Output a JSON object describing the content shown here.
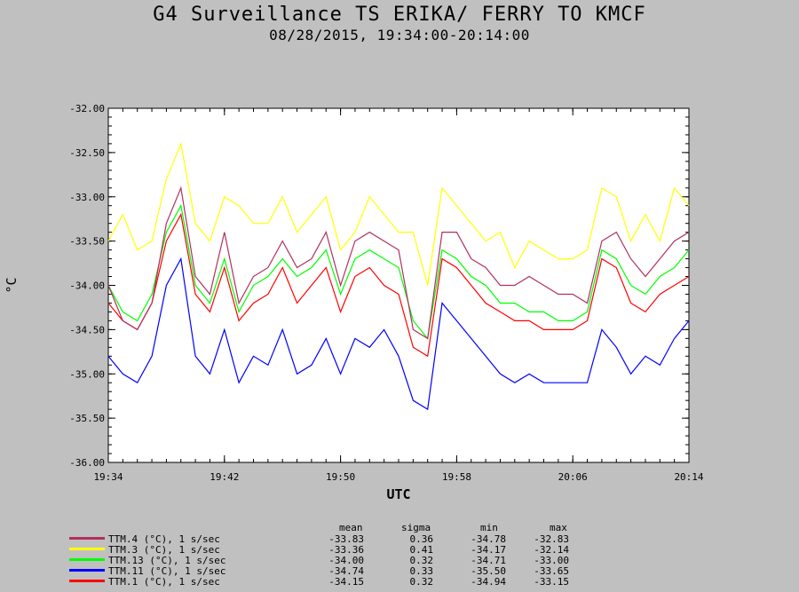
{
  "title": "G4 Surveillance TS ERIKA/ FERRY TO KMCF",
  "subtitle": "08/28/2015, 19:34:00-20:14:00",
  "stats_header": {
    "mean": "mean",
    "sigma": "sigma",
    "min": "min",
    "max": "max"
  },
  "chart_data": {
    "type": "line",
    "xlabel": "UTC",
    "ylabel": "°C",
    "xlim": [
      "19:34",
      "20:14"
    ],
    "ylim": [
      -36.0,
      -32.0
    ],
    "x_ticks": [
      "19:34",
      "19:42",
      "19:50",
      "19:58",
      "20:06",
      "20:14"
    ],
    "y_ticks": [
      "-32.00",
      "-32.50",
      "-33.00",
      "-33.50",
      "-34.00",
      "-34.50",
      "-35.00",
      "-35.50",
      "-36.00"
    ],
    "grid": false,
    "x_minutes": [
      0,
      1,
      2,
      3,
      4,
      5,
      6,
      7,
      8,
      9,
      10,
      11,
      12,
      13,
      14,
      15,
      16,
      17,
      18,
      19,
      20,
      21,
      22,
      23,
      24,
      25,
      26,
      27,
      28,
      29,
      30,
      31,
      32,
      33,
      34,
      35,
      36,
      37,
      38,
      39,
      40
    ],
    "series": [
      {
        "name": "TTM.4 (°C), 1 s/sec",
        "color": "#b03060",
        "mean": "-33.83",
        "sigma": "0.36",
        "min": "-34.78",
        "max": "-32.83",
        "values": [
          -34.0,
          -34.4,
          -34.5,
          -34.2,
          -33.3,
          -32.9,
          -33.9,
          -34.1,
          -33.4,
          -34.2,
          -33.9,
          -33.8,
          -33.5,
          -33.8,
          -33.7,
          -33.4,
          -34.0,
          -33.5,
          -33.4,
          -33.5,
          -33.6,
          -34.5,
          -34.6,
          -33.4,
          -33.4,
          -33.7,
          -33.8,
          -34.0,
          -34.0,
          -33.9,
          -34.0,
          -34.1,
          -34.1,
          -34.2,
          -33.5,
          -33.4,
          -33.7,
          -33.9,
          -33.7,
          -33.5,
          -33.4
        ]
      },
      {
        "name": "TTM.3 (°C), 1 s/sec",
        "color": "#ffff00",
        "mean": "-33.36",
        "sigma": "0.41",
        "min": "-34.17",
        "max": "-32.14",
        "values": [
          -33.5,
          -33.2,
          -33.6,
          -33.5,
          -32.8,
          -32.4,
          -33.3,
          -33.5,
          -33.0,
          -33.1,
          -33.3,
          -33.3,
          -33.0,
          -33.4,
          -33.2,
          -33.0,
          -33.6,
          -33.4,
          -33.0,
          -33.2,
          -33.4,
          -33.4,
          -34.0,
          -32.9,
          -33.1,
          -33.3,
          -33.5,
          -33.4,
          -33.8,
          -33.5,
          -33.6,
          -33.7,
          -33.7,
          -33.6,
          -32.9,
          -33.0,
          -33.5,
          -33.2,
          -33.5,
          -32.9,
          -33.1
        ]
      },
      {
        "name": "TTM.13 (°C), 1 s/sec",
        "color": "#00ff00",
        "mean": "-34.00",
        "sigma": "0.32",
        "min": "-34.71",
        "max": "-33.00",
        "values": [
          -34.0,
          -34.3,
          -34.4,
          -34.1,
          -33.4,
          -33.1,
          -34.0,
          -34.2,
          -33.7,
          -34.3,
          -34.0,
          -33.9,
          -33.7,
          -33.9,
          -33.8,
          -33.6,
          -34.1,
          -33.7,
          -33.6,
          -33.7,
          -33.8,
          -34.4,
          -34.6,
          -33.6,
          -33.7,
          -33.9,
          -34.0,
          -34.2,
          -34.2,
          -34.3,
          -34.3,
          -34.4,
          -34.4,
          -34.3,
          -33.6,
          -33.7,
          -34.0,
          -34.1,
          -33.9,
          -33.8,
          -33.6
        ]
      },
      {
        "name": "TTM.11 (°C), 1 s/sec",
        "color": "#0000ff",
        "mean": "-34.74",
        "sigma": "0.33",
        "min": "-35.50",
        "max": "-33.65",
        "values": [
          -34.8,
          -35.0,
          -35.1,
          -34.8,
          -34.0,
          -33.7,
          -34.8,
          -35.0,
          -34.5,
          -35.1,
          -34.8,
          -34.9,
          -34.5,
          -35.0,
          -34.9,
          -34.6,
          -35.0,
          -34.6,
          -34.7,
          -34.5,
          -34.8,
          -35.3,
          -35.4,
          -34.2,
          -34.4,
          -34.6,
          -34.8,
          -35.0,
          -35.1,
          -35.0,
          -35.1,
          -35.1,
          -35.1,
          -35.1,
          -34.5,
          -34.7,
          -35.0,
          -34.8,
          -34.9,
          -34.6,
          -34.4
        ]
      },
      {
        "name": "TTM.1 (°C), 1 s/sec",
        "color": "#ff0000",
        "mean": "-34.15",
        "sigma": "0.32",
        "min": "-34.94",
        "max": "-33.15",
        "values": [
          -34.2,
          -34.4,
          -34.5,
          -34.2,
          -33.5,
          -33.2,
          -34.1,
          -34.3,
          -33.8,
          -34.4,
          -34.2,
          -34.1,
          -33.8,
          -34.2,
          -34.0,
          -33.8,
          -34.3,
          -33.9,
          -33.8,
          -34.0,
          -34.1,
          -34.7,
          -34.8,
          -33.7,
          -33.8,
          -34.0,
          -34.2,
          -34.3,
          -34.4,
          -34.4,
          -34.5,
          -34.5,
          -34.5,
          -34.4,
          -33.7,
          -33.8,
          -34.2,
          -34.3,
          -34.1,
          -34.0,
          -33.9
        ]
      }
    ]
  }
}
